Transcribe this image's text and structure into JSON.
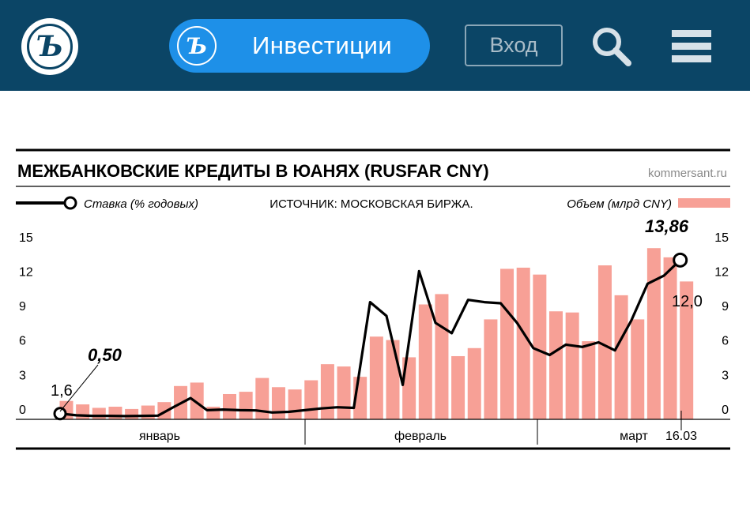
{
  "header": {
    "logo_letter": "Ъ",
    "invest_logo_letter": "Ъ",
    "invest_label": "Инвестиции",
    "login_label": "Вход",
    "search_icon": "search-icon",
    "menu_icon": "hamburger-menu-icon"
  },
  "chart_data": {
    "type": "bar",
    "title": "МЕЖБАНКОВСКИЕ КРЕДИТЫ В ЮАНЯХ (RUSFAR CNY)",
    "watermark": "kommersant.ru",
    "source": "ИСТОЧНИК: МОСКОВСКАЯ БИРЖА.",
    "legend_line": "Ставка (% годовых)",
    "legend_bar": "Объем (млрд CNY)",
    "legend_placement": "top",
    "y_ticks": [
      0,
      3,
      6,
      9,
      12,
      15
    ],
    "ylim": [
      0,
      15
    ],
    "month_labels": [
      "январь",
      "февраль",
      "март"
    ],
    "end_date_label": "16.03",
    "annotations": {
      "rate_start": "0,50",
      "volume_start": "1,6",
      "rate_end": "13,86",
      "volume_end": "12,0"
    },
    "grid": false,
    "colors": {
      "bar": "#f7a096",
      "line": "#000000"
    },
    "series": [
      {
        "type": "bar",
        "values": [
          1.6,
          1.3,
          1.0,
          1.1,
          0.9,
          1.2,
          1.5,
          2.9,
          3.2,
          1.1,
          2.2,
          2.4,
          3.6,
          2.8,
          2.6,
          3.4,
          4.8,
          4.6,
          3.7,
          7.2,
          6.9,
          5.4,
          10.0,
          10.9,
          5.5,
          6.2,
          8.7,
          13.1,
          13.2,
          12.6,
          9.4,
          9.3,
          6.8,
          13.4,
          10.8,
          8.7,
          14.9,
          14.1,
          12.0
        ]
      },
      {
        "type": "line",
        "values": [
          0.5,
          0.35,
          0.3,
          0.3,
          0.28,
          0.3,
          0.32,
          1.1,
          1.85,
          0.8,
          0.85,
          0.8,
          0.78,
          0.6,
          0.65,
          0.8,
          0.95,
          1.05,
          1.0,
          10.2,
          9.0,
          3.0,
          12.9,
          8.4,
          7.5,
          10.4,
          10.2,
          10.1,
          8.4,
          6.2,
          5.6,
          6.5,
          6.3,
          6.7,
          6.0,
          8.6,
          11.8,
          12.5,
          13.86
        ]
      }
    ]
  }
}
